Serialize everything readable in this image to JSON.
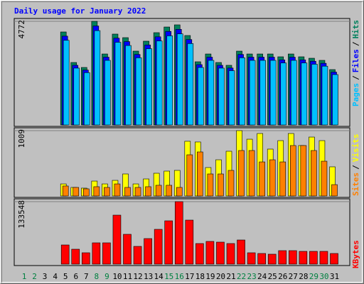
{
  "chart_data": [
    {
      "type": "bar",
      "title": "Daily usage for January 2022",
      "ylim": [
        0,
        4772
      ],
      "yticks": [
        4772
      ],
      "legend_separator": "/",
      "series": [
        {
          "name": "Hits",
          "color": "#00805c",
          "values": [
            0,
            0,
            0,
            0,
            4282,
            2876,
            2647,
            4772,
            3268,
            4184,
            4020,
            3399,
            3857,
            4249,
            4510,
            4609,
            4118,
            2909,
            3268,
            2876,
            2746,
            3399,
            3268,
            3268,
            3268,
            3138,
            3268,
            3138,
            3072,
            2974,
            2549
          ]
        },
        {
          "name": "Files",
          "color": "#0000ff",
          "values": [
            0,
            0,
            0,
            0,
            4089,
            2747,
            2528,
            4557,
            3121,
            3996,
            3839,
            3246,
            3683,
            4058,
            4307,
            4402,
            3933,
            2778,
            3121,
            2747,
            2622,
            3246,
            3121,
            3121,
            3121,
            2997,
            3121,
            2997,
            2934,
            2840,
            2434
          ]
        },
        {
          "name": "Pages",
          "color": "#00c0ff",
          "values": [
            0,
            0,
            0,
            0,
            3897,
            2617,
            2409,
            4343,
            2974,
            3807,
            3658,
            3093,
            3510,
            3867,
            4104,
            4194,
            3747,
            2647,
            2974,
            2617,
            2499,
            3093,
            2974,
            2974,
            2974,
            2856,
            2974,
            2856,
            2796,
            2706,
            2320
          ]
        }
      ]
    },
    {
      "type": "bar",
      "ylim": [
        0,
        1009
      ],
      "yticks": [
        1009
      ],
      "legend_separator": "/",
      "series": [
        {
          "name": "Visits",
          "color": "#ffff00",
          "values": [
            0,
            0,
            0,
            0,
            186,
            132,
            121,
            230,
            186,
            241,
            340,
            186,
            263,
            351,
            384,
            395,
            845,
            834,
            439,
            559,
            691,
            1009,
            877,
            965,
            724,
            855,
            965,
            779,
            910,
            855,
            450
          ]
        },
        {
          "name": "Sites",
          "color": "#ff8000",
          "values": [
            0,
            0,
            0,
            0,
            154,
            132,
            110,
            143,
            132,
            186,
            132,
            132,
            143,
            165,
            165,
            132,
            636,
            680,
            340,
            340,
            395,
            702,
            702,
            526,
            559,
            526,
            779,
            779,
            702,
            537,
            175
          ]
        }
      ]
    },
    {
      "type": "bar",
      "ylim": [
        0,
        133548
      ],
      "yticks": [
        133548
      ],
      "categories": [
        "1",
        "2",
        "3",
        "4",
        "5",
        "6",
        "7",
        "8",
        "9",
        "10",
        "11",
        "12",
        "13",
        "14",
        "15",
        "16",
        "17",
        "18",
        "19",
        "20",
        "21",
        "22",
        "23",
        "24",
        "25",
        "26",
        "27",
        "28",
        "29",
        "30",
        "31"
      ],
      "category_colors": [
        "#008040",
        "#008040",
        "#000000",
        "#000000",
        "#000000",
        "#000000",
        "#000000",
        "#008040",
        "#008040",
        "#000000",
        "#000000",
        "#000000",
        "#000000",
        "#000000",
        "#008040",
        "#008040",
        "#000000",
        "#000000",
        "#000000",
        "#000000",
        "#000000",
        "#008040",
        "#008040",
        "#000000",
        "#000000",
        "#000000",
        "#000000",
        "#000000",
        "#008040",
        "#008040",
        "#000000"
      ],
      "series": [
        {
          "name": "KBytes",
          "color": "#ff0000",
          "values": [
            0,
            0,
            0,
            0,
            40975,
            31869,
            24281,
            45528,
            45528,
            104713,
            63739,
            37940,
            54633,
            74362,
            92573,
            133548,
            94091,
            44010,
            48563,
            47045,
            44010,
            51598,
            24281,
            22764,
            21246,
            28834,
            28834,
            27316,
            27316,
            27316,
            22764
          ]
        }
      ]
    }
  ]
}
